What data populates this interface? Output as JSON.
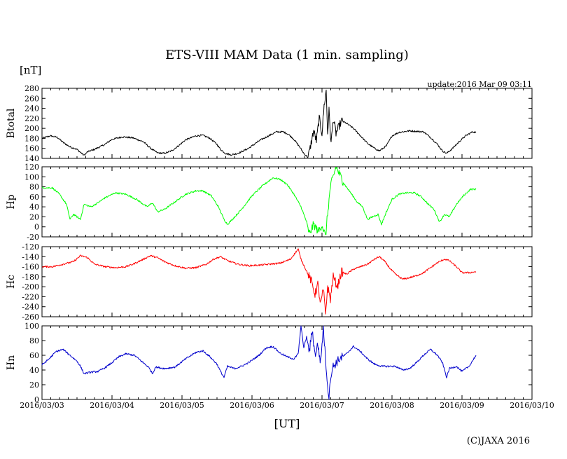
{
  "header": {
    "title": "ETS-VIII MAM Data (1 min. sampling)",
    "unit": "[nT]",
    "update": "update:2016 Mar 09 03:11",
    "xaxis_label": "[UT]",
    "copyright": "(C)JAXA 2016"
  },
  "chart_data": {
    "type": "line",
    "title": "ETS-VIII MAM Data (1 min. sampling)",
    "ylabel": "[nT]",
    "xlabel": "[UT]",
    "x_ticks": [
      "2016/03/03",
      "2016/03/04",
      "2016/03/05",
      "2016/03/06",
      "2016/03/07",
      "2016/03/08",
      "2016/03/09",
      "2016/03/10"
    ],
    "x_unit": "days since 2016/03/03 00:00 UT",
    "xlim": [
      0,
      7
    ],
    "panels": [
      {
        "name": "Btotal",
        "color": "#000000",
        "ylim": [
          140,
          280
        ],
        "yticks": [
          140,
          160,
          180,
          200,
          220,
          240,
          260,
          280
        ],
        "points": [
          [
            0.0,
            180
          ],
          [
            0.12,
            185
          ],
          [
            0.22,
            182
          ],
          [
            0.3,
            172
          ],
          [
            0.4,
            163
          ],
          [
            0.5,
            158
          ],
          [
            0.55,
            152
          ],
          [
            0.6,
            146
          ],
          [
            0.65,
            153
          ],
          [
            0.75,
            158
          ],
          [
            0.9,
            168
          ],
          [
            1.0,
            178
          ],
          [
            1.15,
            183
          ],
          [
            1.3,
            181
          ],
          [
            1.45,
            173
          ],
          [
            1.55,
            160
          ],
          [
            1.65,
            151
          ],
          [
            1.75,
            150
          ],
          [
            1.85,
            155
          ],
          [
            1.95,
            165
          ],
          [
            2.05,
            177
          ],
          [
            2.2,
            185
          ],
          [
            2.3,
            186
          ],
          [
            2.4,
            180
          ],
          [
            2.5,
            168
          ],
          [
            2.55,
            158
          ],
          [
            2.62,
            150
          ],
          [
            2.7,
            147
          ],
          [
            2.8,
            150
          ],
          [
            2.95,
            160
          ],
          [
            3.1,
            175
          ],
          [
            3.25,
            186
          ],
          [
            3.35,
            193
          ],
          [
            3.45,
            193
          ],
          [
            3.52,
            188
          ],
          [
            3.6,
            178
          ],
          [
            3.68,
            163
          ],
          [
            3.74,
            150
          ],
          [
            3.8,
            142
          ],
          [
            3.83,
            160
          ],
          [
            3.88,
            195
          ],
          [
            3.92,
            175
          ],
          [
            3.96,
            220
          ],
          [
            4.0,
            190
          ],
          [
            4.03,
            245
          ],
          [
            4.06,
            275
          ],
          [
            4.08,
            190
          ],
          [
            4.1,
            235
          ],
          [
            4.13,
            170
          ],
          [
            4.16,
            220
          ],
          [
            4.2,
            190
          ],
          [
            4.28,
            215
          ],
          [
            4.35,
            210
          ],
          [
            4.45,
            200
          ],
          [
            4.55,
            185
          ],
          [
            4.65,
            170
          ],
          [
            4.75,
            160
          ],
          [
            4.82,
            155
          ],
          [
            4.92,
            165
          ],
          [
            5.0,
            185
          ],
          [
            5.1,
            192
          ],
          [
            5.25,
            195
          ],
          [
            5.35,
            194
          ],
          [
            5.45,
            193
          ],
          [
            5.55,
            182
          ],
          [
            5.65,
            168
          ],
          [
            5.72,
            155
          ],
          [
            5.78,
            150
          ],
          [
            5.85,
            158
          ],
          [
            5.95,
            172
          ],
          [
            6.05,
            185
          ],
          [
            6.15,
            193
          ],
          [
            6.2,
            192
          ]
        ]
      },
      {
        "name": "Hp",
        "color": "#00ff00",
        "ylim": [
          -20,
          120
        ],
        "yticks": [
          -20,
          0,
          20,
          40,
          60,
          80,
          100,
          120
        ],
        "points": [
          [
            0.0,
            78
          ],
          [
            0.15,
            78
          ],
          [
            0.25,
            65
          ],
          [
            0.35,
            45
          ],
          [
            0.4,
            15
          ],
          [
            0.45,
            25
          ],
          [
            0.5,
            20
          ],
          [
            0.55,
            15
          ],
          [
            0.6,
            45
          ],
          [
            0.7,
            40
          ],
          [
            0.8,
            48
          ],
          [
            0.9,
            58
          ],
          [
            1.05,
            68
          ],
          [
            1.2,
            65
          ],
          [
            1.35,
            55
          ],
          [
            1.5,
            40
          ],
          [
            1.58,
            48
          ],
          [
            1.65,
            30
          ],
          [
            1.75,
            35
          ],
          [
            1.9,
            50
          ],
          [
            2.05,
            65
          ],
          [
            2.2,
            72
          ],
          [
            2.3,
            72
          ],
          [
            2.42,
            62
          ],
          [
            2.52,
            40
          ],
          [
            2.6,
            15
          ],
          [
            2.65,
            5
          ],
          [
            2.72,
            15
          ],
          [
            2.85,
            35
          ],
          [
            3.0,
            62
          ],
          [
            3.15,
            82
          ],
          [
            3.3,
            98
          ],
          [
            3.4,
            95
          ],
          [
            3.5,
            85
          ],
          [
            3.6,
            65
          ],
          [
            3.7,
            40
          ],
          [
            3.78,
            10
          ],
          [
            3.82,
            -15
          ],
          [
            3.88,
            5
          ],
          [
            3.95,
            -10
          ],
          [
            4.0,
            5
          ],
          [
            4.05,
            -20
          ],
          [
            4.08,
            25
          ],
          [
            4.12,
            80
          ],
          [
            4.16,
            100
          ],
          [
            4.2,
            120
          ],
          [
            4.25,
            105
          ],
          [
            4.32,
            85
          ],
          [
            4.4,
            70
          ],
          [
            4.5,
            50
          ],
          [
            4.58,
            40
          ],
          [
            4.65,
            15
          ],
          [
            4.72,
            20
          ],
          [
            4.8,
            25
          ],
          [
            4.85,
            5
          ],
          [
            4.92,
            30
          ],
          [
            5.0,
            55
          ],
          [
            5.1,
            65
          ],
          [
            5.2,
            68
          ],
          [
            5.32,
            68
          ],
          [
            5.42,
            60
          ],
          [
            5.52,
            45
          ],
          [
            5.6,
            35
          ],
          [
            5.68,
            10
          ],
          [
            5.75,
            25
          ],
          [
            5.82,
            20
          ],
          [
            5.92,
            45
          ],
          [
            6.02,
            62
          ],
          [
            6.12,
            75
          ],
          [
            6.2,
            75
          ]
        ]
      },
      {
        "name": "Hc",
        "color": "#ff0000",
        "ylim": [
          -260,
          -120
        ],
        "yticks": [
          -260,
          -240,
          -220,
          -200,
          -180,
          -160,
          -140,
          -120
        ],
        "points": [
          [
            0.0,
            -160
          ],
          [
            0.15,
            -160
          ],
          [
            0.3,
            -155
          ],
          [
            0.45,
            -150
          ],
          [
            0.55,
            -138
          ],
          [
            0.65,
            -142
          ],
          [
            0.75,
            -155
          ],
          [
            0.9,
            -160
          ],
          [
            1.05,
            -162
          ],
          [
            1.2,
            -160
          ],
          [
            1.3,
            -155
          ],
          [
            1.45,
            -145
          ],
          [
            1.55,
            -138
          ],
          [
            1.65,
            -142
          ],
          [
            1.75,
            -150
          ],
          [
            1.9,
            -158
          ],
          [
            2.05,
            -163
          ],
          [
            2.2,
            -162
          ],
          [
            2.35,
            -155
          ],
          [
            2.45,
            -145
          ],
          [
            2.55,
            -140
          ],
          [
            2.65,
            -148
          ],
          [
            2.8,
            -155
          ],
          [
            2.95,
            -158
          ],
          [
            3.1,
            -157
          ],
          [
            3.25,
            -155
          ],
          [
            3.4,
            -153
          ],
          [
            3.55,
            -145
          ],
          [
            3.62,
            -132
          ],
          [
            3.66,
            -125
          ],
          [
            3.7,
            -145
          ],
          [
            3.75,
            -160
          ],
          [
            3.8,
            -175
          ],
          [
            3.85,
            -190
          ],
          [
            3.9,
            -215
          ],
          [
            3.94,
            -195
          ],
          [
            3.98,
            -235
          ],
          [
            4.02,
            -205
          ],
          [
            4.05,
            -255
          ],
          [
            4.08,
            -200
          ],
          [
            4.12,
            -225
          ],
          [
            4.16,
            -180
          ],
          [
            4.22,
            -200
          ],
          [
            4.28,
            -170
          ],
          [
            4.35,
            -175
          ],
          [
            4.45,
            -165
          ],
          [
            4.55,
            -160
          ],
          [
            4.65,
            -155
          ],
          [
            4.75,
            -145
          ],
          [
            4.82,
            -140
          ],
          [
            4.9,
            -150
          ],
          [
            4.98,
            -165
          ],
          [
            5.05,
            -175
          ],
          [
            5.15,
            -185
          ],
          [
            5.25,
            -182
          ],
          [
            5.35,
            -178
          ],
          [
            5.45,
            -172
          ],
          [
            5.55,
            -162
          ],
          [
            5.65,
            -152
          ],
          [
            5.75,
            -145
          ],
          [
            5.82,
            -148
          ],
          [
            5.92,
            -160
          ],
          [
            6.0,
            -172
          ],
          [
            6.1,
            -172
          ],
          [
            6.2,
            -170
          ]
        ]
      },
      {
        "name": "Hn",
        "color": "#0000cc",
        "ylim": [
          0,
          100
        ],
        "yticks": [
          0,
          20,
          40,
          60,
          80,
          100
        ],
        "points": [
          [
            0.0,
            47
          ],
          [
            0.1,
            55
          ],
          [
            0.2,
            65
          ],
          [
            0.3,
            68
          ],
          [
            0.4,
            60
          ],
          [
            0.5,
            52
          ],
          [
            0.55,
            45
          ],
          [
            0.6,
            35
          ],
          [
            0.7,
            37
          ],
          [
            0.8,
            38
          ],
          [
            0.9,
            43
          ],
          [
            1.0,
            50
          ],
          [
            1.1,
            58
          ],
          [
            1.2,
            62
          ],
          [
            1.32,
            60
          ],
          [
            1.42,
            52
          ],
          [
            1.52,
            44
          ],
          [
            1.58,
            35
          ],
          [
            1.62,
            44
          ],
          [
            1.75,
            42
          ],
          [
            1.9,
            44
          ],
          [
            2.05,
            55
          ],
          [
            2.2,
            64
          ],
          [
            2.3,
            66
          ],
          [
            2.4,
            58
          ],
          [
            2.5,
            48
          ],
          [
            2.55,
            38
          ],
          [
            2.6,
            30
          ],
          [
            2.65,
            45
          ],
          [
            2.75,
            42
          ],
          [
            2.85,
            45
          ],
          [
            2.95,
            50
          ],
          [
            3.1,
            60
          ],
          [
            3.2,
            70
          ],
          [
            3.3,
            72
          ],
          [
            3.4,
            63
          ],
          [
            3.5,
            58
          ],
          [
            3.6,
            55
          ],
          [
            3.66,
            62
          ],
          [
            3.7,
            100
          ],
          [
            3.74,
            70
          ],
          [
            3.78,
            85
          ],
          [
            3.82,
            65
          ],
          [
            3.86,
            95
          ],
          [
            3.9,
            60
          ],
          [
            3.94,
            75
          ],
          [
            3.98,
            50
          ],
          [
            4.02,
            100
          ],
          [
            4.05,
            55
          ],
          [
            4.08,
            20
          ],
          [
            4.1,
            0
          ],
          [
            4.12,
            30
          ],
          [
            4.16,
            45
          ],
          [
            4.25,
            55
          ],
          [
            4.35,
            62
          ],
          [
            4.45,
            72
          ],
          [
            4.55,
            65
          ],
          [
            4.65,
            55
          ],
          [
            4.75,
            48
          ],
          [
            4.85,
            45
          ],
          [
            4.95,
            45
          ],
          [
            5.05,
            45
          ],
          [
            5.15,
            40
          ],
          [
            5.25,
            42
          ],
          [
            5.35,
            50
          ],
          [
            5.45,
            60
          ],
          [
            5.55,
            68
          ],
          [
            5.65,
            60
          ],
          [
            5.72,
            50
          ],
          [
            5.78,
            30
          ],
          [
            5.82,
            42
          ],
          [
            5.92,
            45
          ],
          [
            6.0,
            38
          ],
          [
            6.1,
            45
          ],
          [
            6.2,
            60
          ]
        ]
      }
    ]
  }
}
